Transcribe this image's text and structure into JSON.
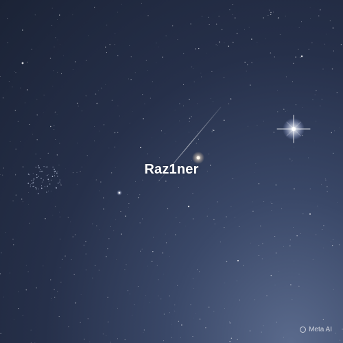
{
  "image": {
    "description_type": "night-sky-photo",
    "overlay_text": "Raz1ner",
    "watermark": "Meta AI",
    "colors": {
      "sky_dark": "#1b2336",
      "sky_light": "#5a6a8c",
      "text": "#ffffff"
    }
  }
}
